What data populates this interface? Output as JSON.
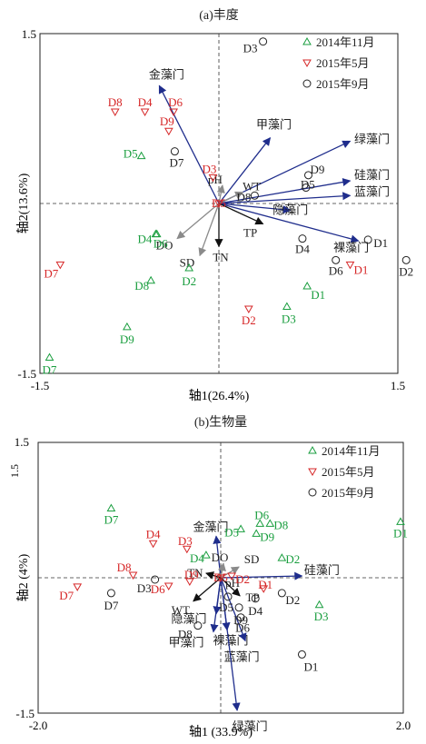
{
  "colors": {
    "nov2014": "#1a9e3f",
    "may2015": "#d62728",
    "sep2015": "#222222",
    "phylum_arrow": "#1f2d8c",
    "env_arrow_grey": "#8a8a8a",
    "env_arrow_black": "#111111"
  },
  "legend": [
    {
      "key": "nov2014",
      "label": "2014年11月",
      "marker": "triangle-up",
      "color": "#1a9e3f"
    },
    {
      "key": "may2015",
      "label": "2015年5月",
      "marker": "triangle-down",
      "color": "#d62728"
    },
    {
      "key": "sep2015",
      "label": "2015年9月",
      "marker": "circle",
      "color": "#222222"
    }
  ],
  "chart_data": [
    {
      "type": "scatter",
      "title": "(a)丰度",
      "xlabel": "轴1(26.4%)",
      "ylabel": "轴2(13.6%)",
      "xlim": [
        -1.5,
        1.5
      ],
      "ylim": [
        -1.5,
        1.5
      ],
      "xticks": [
        "-1.5",
        "1.5"
      ],
      "yticks": [
        "1.5",
        "-1.5"
      ],
      "legend_position": "top-right",
      "series": [
        {
          "name": "2014年11月",
          "key": "nov2014",
          "points": [
            {
              "label": "D1",
              "x": 0.74,
              "y": -0.73
            },
            {
              "label": "D2",
              "x": -0.25,
              "y": -0.57
            },
            {
              "label": "D3",
              "x": 0.57,
              "y": -0.91
            },
            {
              "label": "D4",
              "x": -0.53,
              "y": -0.27
            },
            {
              "label": "D5",
              "x": -0.65,
              "y": 0.42
            },
            {
              "label": "D6",
              "x": -0.52,
              "y": -0.27
            },
            {
              "label": "D7",
              "x": -1.42,
              "y": -1.36
            },
            {
              "label": "D8",
              "x": -0.57,
              "y": -0.68
            },
            {
              "label": "D9",
              "x": -0.77,
              "y": -1.09
            }
          ]
        },
        {
          "name": "2015年5月",
          "key": "may2015",
          "points": [
            {
              "label": "D1",
              "x": 1.1,
              "y": -0.54
            },
            {
              "label": "D2",
              "x": 0.25,
              "y": -0.93
            },
            {
              "label": "D3",
              "x": -0.05,
              "y": 0.23
            },
            {
              "label": "D4",
              "x": -0.62,
              "y": 0.81
            },
            {
              "label": "D5",
              "x": 0.0,
              "y": 0.0
            },
            {
              "label": "D6",
              "x": -0.38,
              "y": 0.81
            },
            {
              "label": "D7",
              "x": -1.33,
              "y": -0.54
            },
            {
              "label": "D8",
              "x": -0.87,
              "y": 0.81
            },
            {
              "label": "D9",
              "x": -0.42,
              "y": 0.64
            }
          ]
        },
        {
          "name": "2015年9月",
          "key": "sep2015",
          "points": [
            {
              "label": "D1",
              "x": 1.25,
              "y": -0.32
            },
            {
              "label": "D2",
              "x": 1.57,
              "y": -0.5
            },
            {
              "label": "D3",
              "x": 0.37,
              "y": 1.43
            },
            {
              "label": "D4",
              "x": 0.7,
              "y": -0.31
            },
            {
              "label": "D5",
              "x": 0.73,
              "y": 0.14
            },
            {
              "label": "D6",
              "x": 0.98,
              "y": -0.5
            },
            {
              "label": "D7",
              "x": -0.37,
              "y": 0.46
            },
            {
              "label": "D8",
              "x": 0.3,
              "y": 0.07
            },
            {
              "label": "D9",
              "x": 0.75,
              "y": 0.25
            }
          ]
        }
      ],
      "arrows": [
        {
          "label": "金藻门",
          "x": -0.5,
          "y": 1.04,
          "group": "phylum"
        },
        {
          "label": "甲藻门",
          "x": 0.43,
          "y": 0.58,
          "group": "phylum"
        },
        {
          "label": "绿藻门",
          "x": 1.1,
          "y": 0.55,
          "group": "phylum"
        },
        {
          "label": "硅藻门",
          "x": 1.1,
          "y": 0.2,
          "group": "phylum"
        },
        {
          "label": "蓝藻门",
          "x": 1.1,
          "y": 0.07,
          "group": "phylum"
        },
        {
          "label": "隐藻门",
          "x": 0.6,
          "y": -0.06,
          "group": "phylum"
        },
        {
          "label": "裸藻门",
          "x": 1.17,
          "y": -0.33,
          "group": "phylum"
        },
        {
          "label": "pH",
          "x": 0.03,
          "y": 0.16,
          "group": "env_grey"
        },
        {
          "label": "WT",
          "x": 0.2,
          "y": 0.1,
          "group": "env_grey"
        },
        {
          "label": "DO",
          "x": -0.35,
          "y": -0.31,
          "group": "env_grey"
        },
        {
          "label": "SD",
          "x": -0.16,
          "y": -0.46,
          "group": "env_grey"
        },
        {
          "label": "TP",
          "x": 0.37,
          "y": -0.18,
          "group": "env_black"
        },
        {
          "label": "TN",
          "x": 0.0,
          "y": -0.38,
          "group": "env_black"
        }
      ]
    },
    {
      "type": "scatter",
      "title": "(b)生物量",
      "xlabel": "轴1  (33.9%)",
      "ylabel": "轴2  (4%)",
      "xlim": [
        -2.0,
        2.0
      ],
      "ylim": [
        -1.5,
        1.5
      ],
      "xticks": [
        "-2.0",
        "2.0"
      ],
      "yticks": [
        "1.5",
        "-1.5"
      ],
      "legend_position": "top-right",
      "series": [
        {
          "name": "2014年11月",
          "key": "nov2014",
          "points": [
            {
              "label": "D1",
              "x": 1.97,
              "y": 0.62
            },
            {
              "label": "D2",
              "x": 0.67,
              "y": 0.22
            },
            {
              "label": "D3",
              "x": 1.08,
              "y": -0.3
            },
            {
              "label": "D4",
              "x": -0.16,
              "y": 0.25
            },
            {
              "label": "D5",
              "x": 0.22,
              "y": 0.54
            },
            {
              "label": "D6",
              "x": 0.43,
              "y": 0.6
            },
            {
              "label": "D7",
              "x": -1.2,
              "y": 0.77
            },
            {
              "label": "D8",
              "x": 0.54,
              "y": 0.6
            },
            {
              "label": "D9",
              "x": 0.39,
              "y": 0.49
            }
          ]
        },
        {
          "name": "2015年5月",
          "key": "may2015",
          "points": [
            {
              "label": "D1",
              "x": 0.47,
              "y": -0.12
            },
            {
              "label": "D2",
              "x": 0.12,
              "y": 0.02
            },
            {
              "label": "D3",
              "x": -0.37,
              "y": 0.32
            },
            {
              "label": "D4",
              "x": -0.74,
              "y": 0.38
            },
            {
              "label": "D5",
              "x": 0.0,
              "y": 0.0
            },
            {
              "label": "D6",
              "x": -0.57,
              "y": -0.09
            },
            {
              "label": "D7",
              "x": -1.57,
              "y": -0.1
            },
            {
              "label": "D8",
              "x": -0.96,
              "y": 0.03
            },
            {
              "label": "D9",
              "x": -0.34,
              "y": -0.04
            }
          ]
        },
        {
          "name": "2015年9月",
          "key": "sep2015",
          "points": [
            {
              "label": "D1",
              "x": 0.89,
              "y": -0.85
            },
            {
              "label": "D2",
              "x": 0.67,
              "y": -0.17
            },
            {
              "label": "D3",
              "x": -0.72,
              "y": -0.02
            },
            {
              "label": "D4",
              "x": 0.38,
              "y": -0.23
            },
            {
              "label": "D5",
              "x": 0.08,
              "y": -0.21
            },
            {
              "label": "D6",
              "x": 0.22,
              "y": -0.44
            },
            {
              "label": "D7",
              "x": -1.2,
              "y": -0.17
            },
            {
              "label": "D8",
              "x": -0.25,
              "y": -0.53
            },
            {
              "label": "D9",
              "x": 0.2,
              "y": -0.33
            }
          ]
        }
      ],
      "arrows": [
        {
          "label": "金藻门",
          "x": -0.05,
          "y": 0.46,
          "group": "phylum"
        },
        {
          "label": "硅藻门",
          "x": 0.89,
          "y": 0.02,
          "group": "phylum"
        },
        {
          "label": "隐藻门",
          "x": -0.05,
          "y": -0.4,
          "group": "phylum"
        },
        {
          "label": "甲藻门",
          "x": -0.08,
          "y": -0.6,
          "group": "phylum"
        },
        {
          "label": "裸藻门",
          "x": 0.07,
          "y": -0.58,
          "group": "phylum"
        },
        {
          "label": "蓝藻门",
          "x": 0.27,
          "y": -0.7,
          "group": "phylum"
        },
        {
          "label": "绿藻门",
          "x": 0.18,
          "y": -1.47,
          "group": "phylum"
        },
        {
          "label": "DO",
          "x": 0.03,
          "y": 0.16,
          "group": "env_grey"
        },
        {
          "label": "SD",
          "x": 0.2,
          "y": 0.12,
          "group": "env_grey"
        },
        {
          "label": "pH",
          "x": 0.03,
          "y": -0.02,
          "group": "env_grey"
        },
        {
          "label": "TN",
          "x": -0.16,
          "y": 0.05,
          "group": "env_black"
        },
        {
          "label": "TP",
          "x": 0.21,
          "y": -0.2,
          "group": "env_black"
        },
        {
          "label": "WT",
          "x": -0.3,
          "y": -0.26,
          "group": "env_black"
        }
      ]
    }
  ]
}
